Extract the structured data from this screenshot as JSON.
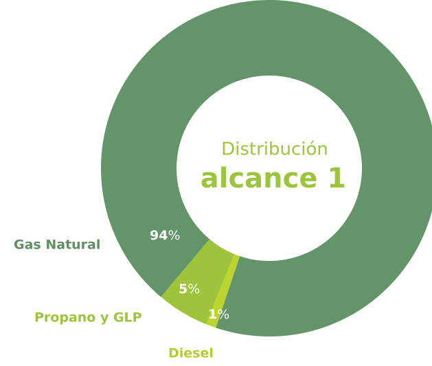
{
  "chart_data": {
    "type": "donut",
    "title": "Distribución",
    "subtitle": "alcance 1",
    "categories": [
      "Gas Natural",
      "Propano y GLP",
      "Diesel"
    ],
    "values": [
      94,
      5,
      1
    ],
    "value_unit": "%",
    "colors": [
      "#64946a",
      "#9dc43a",
      "#bcd52e"
    ],
    "label_colors": [
      "#5f8f63",
      "#9cc43c",
      "#b5cc2a"
    ]
  }
}
